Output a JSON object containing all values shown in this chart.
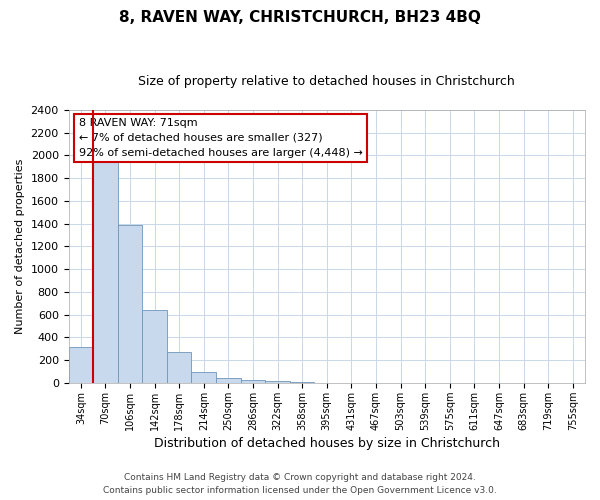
{
  "title1": "8, RAVEN WAY, CHRISTCHURCH, BH23 4BQ",
  "title2": "Size of property relative to detached houses in Christchurch",
  "xlabel": "Distribution of detached houses by size in Christchurch",
  "ylabel": "Number of detached properties",
  "footer1": "Contains HM Land Registry data © Crown copyright and database right 2024.",
  "footer2": "Contains public sector information licensed under the Open Government Licence v3.0.",
  "categories": [
    "34sqm",
    "70sqm",
    "106sqm",
    "142sqm",
    "178sqm",
    "214sqm",
    "250sqm",
    "286sqm",
    "322sqm",
    "358sqm",
    "395sqm",
    "431sqm",
    "467sqm",
    "503sqm",
    "539sqm",
    "575sqm",
    "611sqm",
    "647sqm",
    "683sqm",
    "719sqm",
    "755sqm"
  ],
  "values": [
    320,
    1940,
    1390,
    640,
    270,
    100,
    40,
    30,
    20,
    10,
    0,
    0,
    0,
    0,
    0,
    0,
    0,
    0,
    0,
    0,
    0
  ],
  "bar_color": "#c8d9ed",
  "bar_edge_color": "#7096b8",
  "ylim": [
    0,
    2400
  ],
  "yticks": [
    0,
    200,
    400,
    600,
    800,
    1000,
    1200,
    1400,
    1600,
    1800,
    2000,
    2200,
    2400
  ],
  "annotation_line1": "8 RAVEN WAY: 71sqm",
  "annotation_line2": "← 7% of detached houses are smaller (327)",
  "annotation_line3": "92% of semi-detached houses are larger (4,448) →",
  "annotation_box_color": "#ffffff",
  "annotation_box_edge": "#cc0000",
  "red_line_x": 0.5,
  "background_color": "#ffffff",
  "grid_color": "#c8d8ea",
  "title_fontsize": 11,
  "subtitle_fontsize": 9,
  "ylabel_fontsize": 8,
  "xlabel_fontsize": 9,
  "tick_fontsize": 8,
  "footer_fontsize": 6.5
}
